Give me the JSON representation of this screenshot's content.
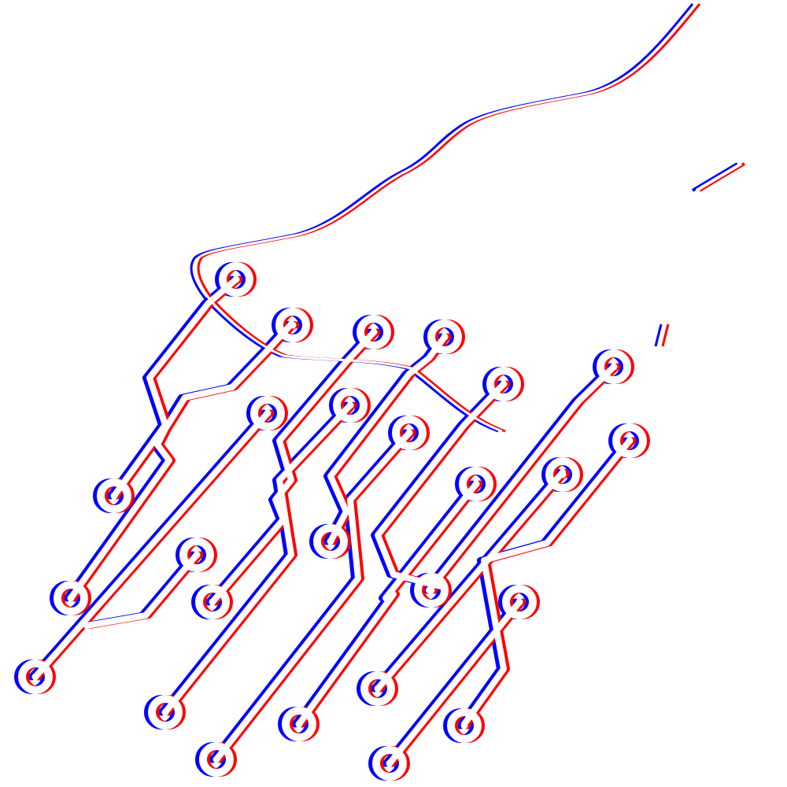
{
  "artwork": {
    "subject": "circuit-hand",
    "colors": {
      "background": "#ffffff",
      "offset_a": "#0000ff",
      "offset_b": "#ff0000",
      "core": "#ffffff"
    }
  }
}
